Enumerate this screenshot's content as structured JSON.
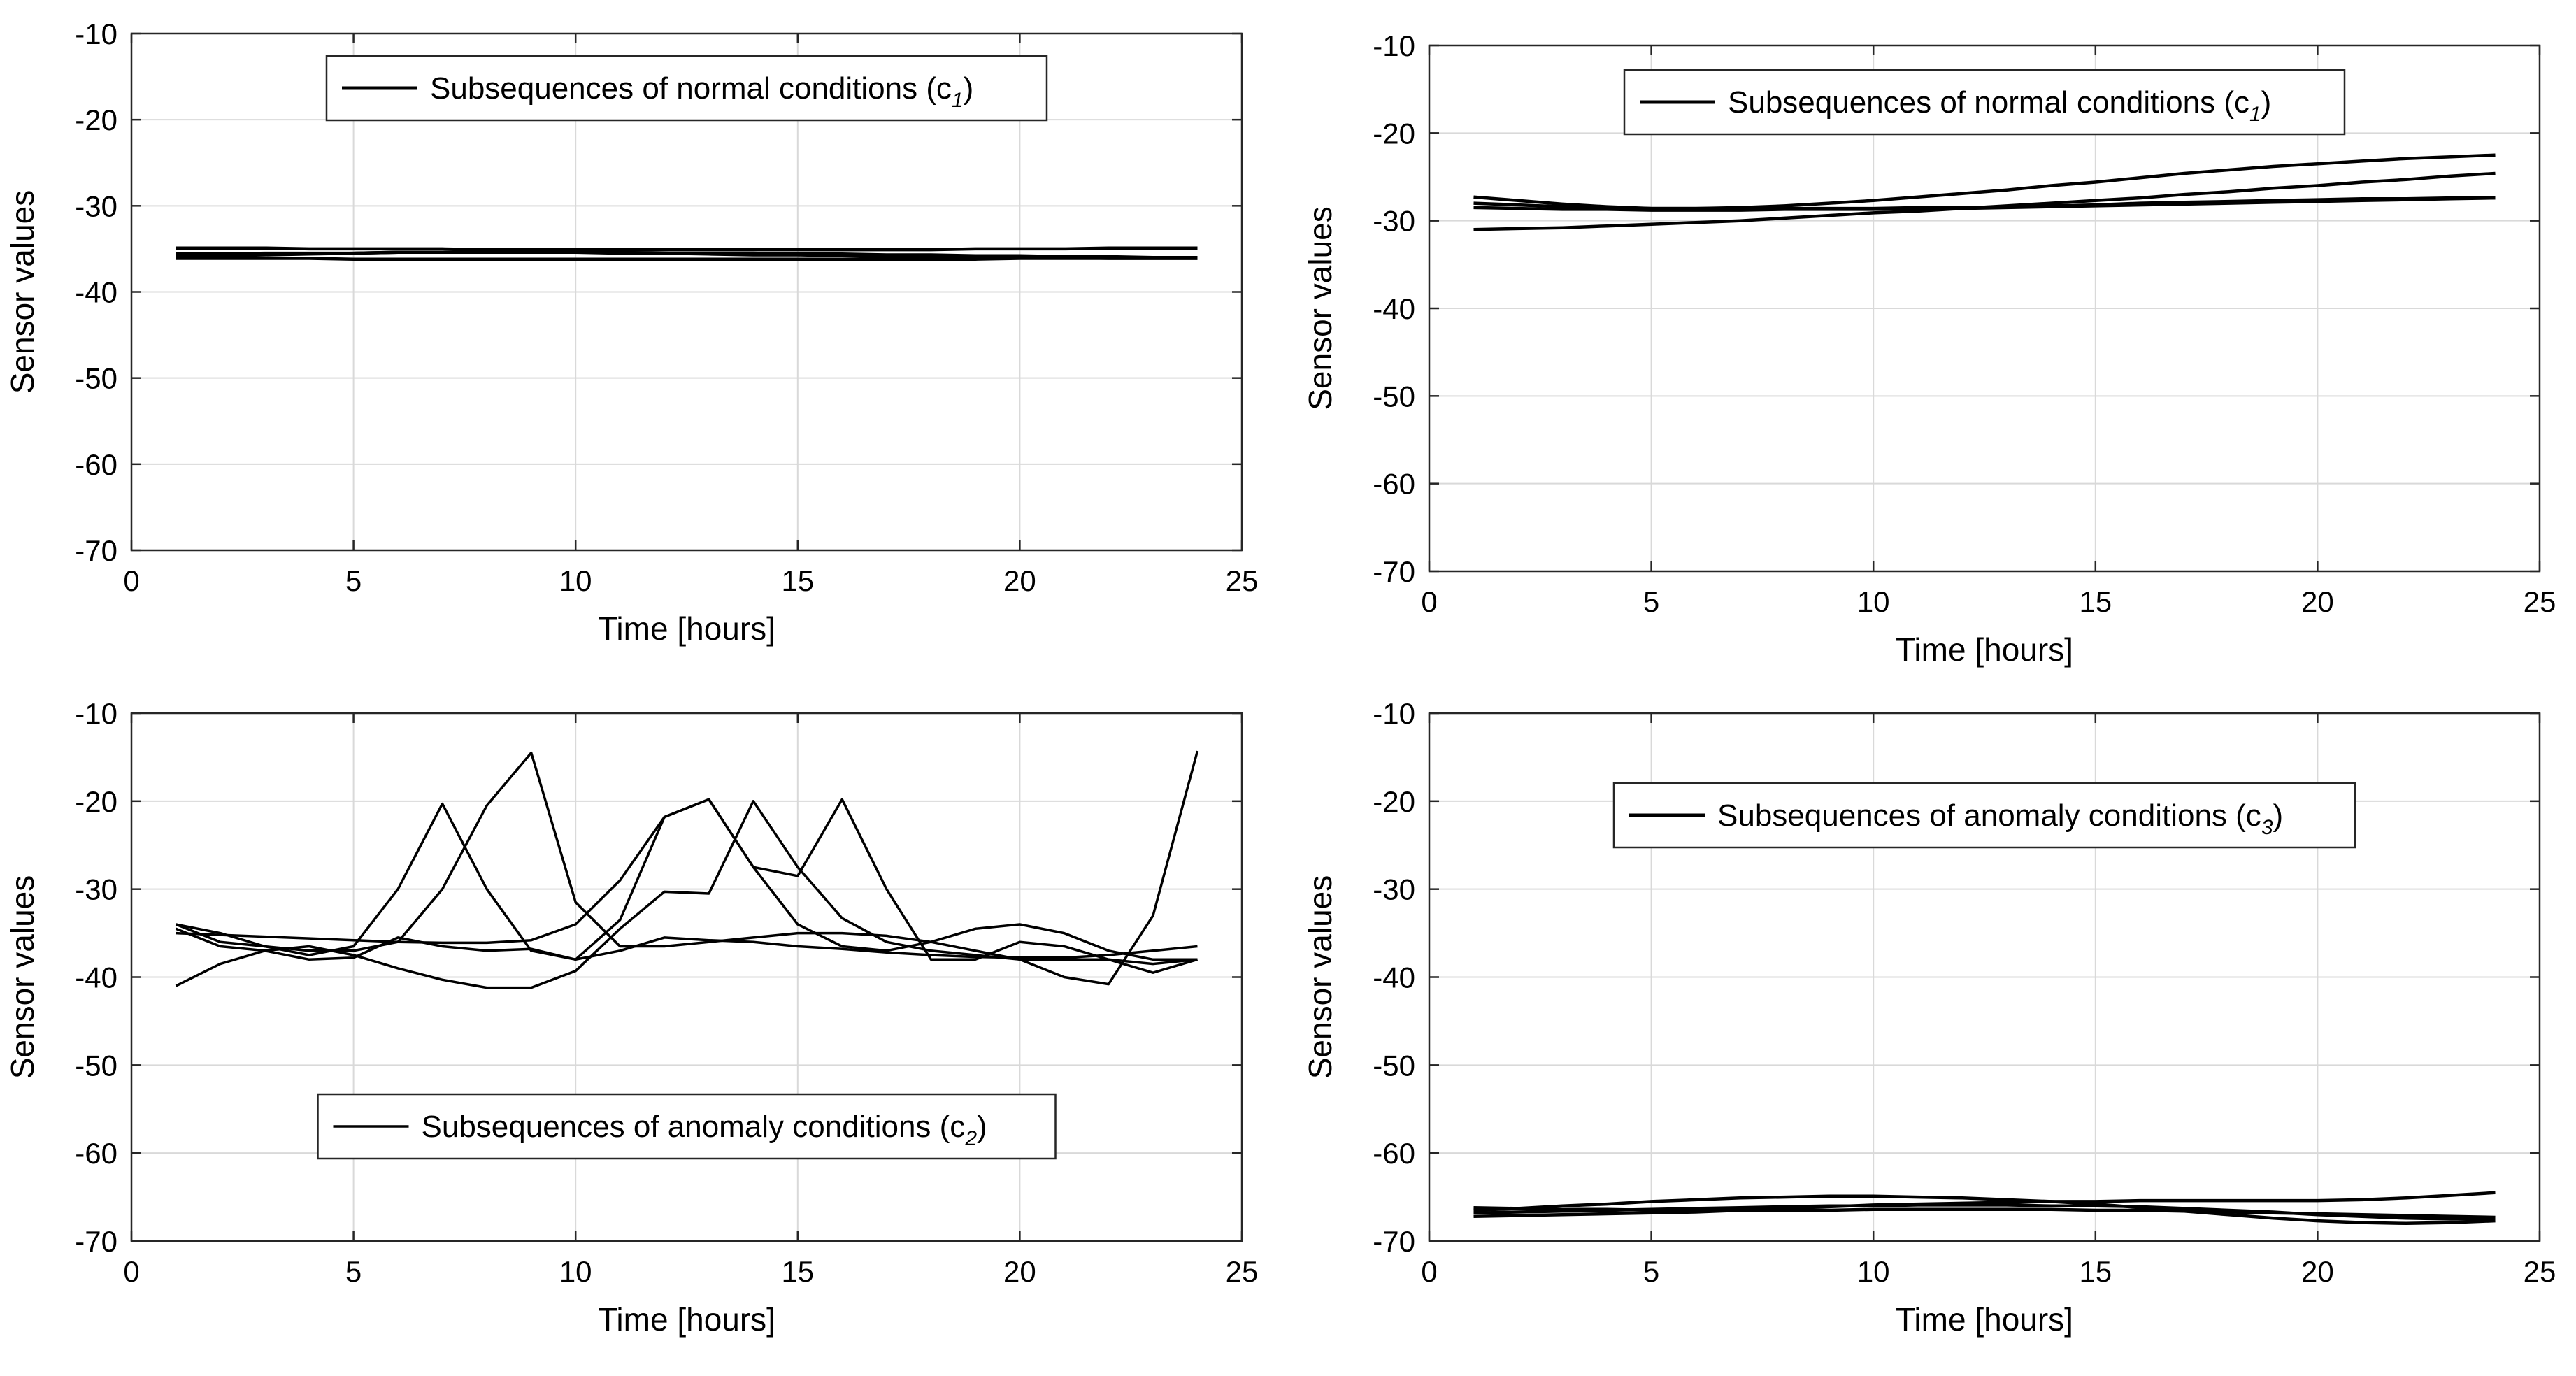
{
  "chart_data": [
    {
      "type": "line",
      "panel": "top-left",
      "xlabel": "Time [hours]",
      "ylabel": "Sensor values",
      "xlim": [
        0,
        25
      ],
      "ylim": [
        -70,
        -10
      ],
      "xticks": [
        0,
        5,
        10,
        15,
        20,
        25
      ],
      "yticks": [
        -70,
        -60,
        -50,
        -40,
        -30,
        -20,
        -10
      ],
      "grid": true,
      "legend": {
        "label": "Subsequences of normal conditions (c",
        "sub": "1",
        "close": ")",
        "placement": "top-center"
      },
      "x": [
        1,
        2,
        3,
        4,
        5,
        6,
        7,
        8,
        9,
        10,
        11,
        12,
        13,
        14,
        15,
        16,
        17,
        18,
        19,
        20,
        21,
        22,
        23,
        24
      ],
      "series": [
        {
          "name": "s1",
          "values": [
            -34.9,
            -34.9,
            -34.9,
            -35.0,
            -35.0,
            -35.0,
            -35.0,
            -35.1,
            -35.1,
            -35.1,
            -35.1,
            -35.1,
            -35.1,
            -35.1,
            -35.1,
            -35.1,
            -35.1,
            -35.1,
            -35.0,
            -35.0,
            -35.0,
            -34.9,
            -34.9,
            -34.9
          ]
        },
        {
          "name": "s2",
          "values": [
            -35.6,
            -35.6,
            -35.5,
            -35.5,
            -35.5,
            -35.4,
            -35.4,
            -35.4,
            -35.4,
            -35.4,
            -35.4,
            -35.5,
            -35.5,
            -35.5,
            -35.6,
            -35.6,
            -35.7,
            -35.7,
            -35.8,
            -35.8,
            -35.9,
            -35.9,
            -36.0,
            -36.0
          ]
        },
        {
          "name": "s3",
          "values": [
            -36.1,
            -36.1,
            -36.1,
            -36.1,
            -36.2,
            -36.2,
            -36.2,
            -36.2,
            -36.2,
            -36.2,
            -36.2,
            -36.2,
            -36.2,
            -36.2,
            -36.2,
            -36.2,
            -36.2,
            -36.2,
            -36.2,
            -36.1,
            -36.1,
            -36.1,
            -36.1,
            -36.1
          ]
        },
        {
          "name": "s4",
          "values": [
            -35.9,
            -35.8,
            -35.7,
            -35.6,
            -35.5,
            -35.4,
            -35.4,
            -35.4,
            -35.4,
            -35.4,
            -35.5,
            -35.5,
            -35.6,
            -35.7,
            -35.7,
            -35.8,
            -35.9,
            -35.9,
            -36.0,
            -36.0,
            -36.0,
            -36.1,
            -36.1,
            -36.1
          ]
        }
      ]
    },
    {
      "type": "line",
      "panel": "top-right",
      "xlabel": "Time [hours]",
      "ylabel": "Sensor values",
      "xlim": [
        0,
        25
      ],
      "ylim": [
        -70,
        -10
      ],
      "xticks": [
        0,
        5,
        10,
        15,
        20,
        25
      ],
      "yticks": [
        -70,
        -60,
        -50,
        -40,
        -30,
        -20,
        -10
      ],
      "grid": true,
      "legend": {
        "label": "Subsequences of normal conditions (c",
        "sub": "1",
        "close": ")",
        "placement": "top-center"
      },
      "x": [
        1,
        2,
        3,
        4,
        5,
        6,
        7,
        8,
        9,
        10,
        11,
        12,
        13,
        14,
        15,
        16,
        17,
        18,
        19,
        20,
        21,
        22,
        23,
        24
      ],
      "series": [
        {
          "name": "s1",
          "values": [
            -27.3,
            -27.7,
            -28.1,
            -28.4,
            -28.6,
            -28.6,
            -28.5,
            -28.3,
            -28.0,
            -27.7,
            -27.3,
            -26.9,
            -26.5,
            -26.0,
            -25.6,
            -25.1,
            -24.6,
            -24.2,
            -23.8,
            -23.5,
            -23.2,
            -22.9,
            -22.7,
            -22.5
          ]
        },
        {
          "name": "s2",
          "values": [
            -28.0,
            -28.2,
            -28.4,
            -28.5,
            -28.6,
            -28.6,
            -28.6,
            -28.6,
            -28.6,
            -28.6,
            -28.5,
            -28.5,
            -28.4,
            -28.3,
            -28.2,
            -28.0,
            -27.9,
            -27.8,
            -27.7,
            -27.6,
            -27.5,
            -27.5,
            -27.4,
            -27.4
          ]
        },
        {
          "name": "s3",
          "values": [
            -31.0,
            -30.9,
            -30.8,
            -30.6,
            -30.4,
            -30.2,
            -30.0,
            -29.7,
            -29.4,
            -29.1,
            -28.9,
            -28.6,
            -28.3,
            -28.0,
            -27.7,
            -27.4,
            -27.0,
            -26.7,
            -26.3,
            -26.0,
            -25.6,
            -25.3,
            -24.9,
            -24.6
          ]
        },
        {
          "name": "s4",
          "values": [
            -28.5,
            -28.6,
            -28.7,
            -28.7,
            -28.8,
            -28.8,
            -28.8,
            -28.7,
            -28.7,
            -28.7,
            -28.6,
            -28.6,
            -28.5,
            -28.4,
            -28.3,
            -28.2,
            -28.1,
            -28.0,
            -27.9,
            -27.8,
            -27.7,
            -27.6,
            -27.5,
            -27.4
          ]
        }
      ]
    },
    {
      "type": "line",
      "panel": "bottom-left",
      "xlabel": "Time [hours]",
      "ylabel": "Sensor values",
      "xlim": [
        0,
        25
      ],
      "ylim": [
        -70,
        -10
      ],
      "xticks": [
        0,
        5,
        10,
        15,
        20,
        25
      ],
      "yticks": [
        -70,
        -60,
        -50,
        -40,
        -30,
        -20,
        -10
      ],
      "grid": true,
      "legend": {
        "label": "Subsequences of anomaly conditions (c",
        "sub": "2",
        "close": ")",
        "placement": "bottom-center"
      },
      "x": [
        1,
        2,
        3,
        4,
        5,
        6,
        7,
        8,
        9,
        10,
        11,
        12,
        13,
        14,
        15,
        16,
        17,
        18,
        19,
        20,
        21,
        22,
        23,
        24
      ],
      "series": [
        {
          "name": "s1",
          "values": [
            -34.0,
            -35.0,
            -36.5,
            -37.5,
            -36.5,
            -30.0,
            -20.3,
            -30.0,
            -37.0,
            -38.0,
            -37.0,
            -35.5,
            -35.8,
            -36.0,
            -36.5,
            -36.8,
            -37.2,
            -37.5,
            -37.7,
            -37.8,
            -37.8,
            -37.5,
            -37.0,
            -36.5
          ]
        },
        {
          "name": "s2",
          "values": [
            -34.0,
            -36.0,
            -36.5,
            -37.0,
            -37.0,
            -36.0,
            -30.0,
            -20.5,
            -14.5,
            -31.5,
            -36.5,
            -36.5,
            -36.0,
            -35.5,
            -35.0,
            -35.0,
            -35.3,
            -36.0,
            -37.0,
            -38.0,
            -40.0,
            -40.8,
            -33.0,
            -14.3
          ]
        },
        {
          "name": "s3",
          "values": [
            -41.0,
            -38.5,
            -37.0,
            -36.5,
            -37.5,
            -39.0,
            -40.3,
            -41.2,
            -41.2,
            -39.3,
            -34.5,
            -30.3,
            -30.5,
            -20.0,
            -27.5,
            -33.3,
            -36.0,
            -37.0,
            -37.5,
            -38.0,
            -38.0,
            -38.0,
            -38.5,
            -38.0
          ]
        },
        {
          "name": "s4",
          "values": [
            -34.5,
            -36.5,
            -37.0,
            -38.0,
            -37.8,
            -35.5,
            -36.5,
            -37.0,
            -36.8,
            -38.0,
            -33.5,
            -21.8,
            -19.8,
            -27.5,
            -28.5,
            -19.8,
            -30.0,
            -38.0,
            -38.0,
            -36.0,
            -36.5,
            -38.0,
            -39.5,
            -38.0
          ]
        },
        {
          "name": "s5",
          "values": [
            -35.0,
            -35.2,
            -35.4,
            -35.6,
            -35.8,
            -36.0,
            -36.1,
            -36.1,
            -35.8,
            -34.0,
            -29.0,
            -21.8,
            -19.8,
            -27.5,
            -34.0,
            -36.5,
            -37.0,
            -36.0,
            -34.5,
            -34.0,
            -35.0,
            -37.0,
            -38.0,
            -38.0
          ]
        }
      ]
    },
    {
      "type": "line",
      "panel": "bottom-right",
      "xlabel": "Time [hours]",
      "ylabel": "Sensor values",
      "xlim": [
        0,
        25
      ],
      "ylim": [
        -70,
        -10
      ],
      "xticks": [
        0,
        5,
        10,
        15,
        20,
        25
      ],
      "yticks": [
        -70,
        -60,
        -50,
        -40,
        -30,
        -20,
        -10
      ],
      "grid": true,
      "legend": {
        "label": "Subsequences of anomaly conditions (c",
        "sub": "3",
        "close": ")",
        "placement": "top-center"
      },
      "x": [
        1,
        2,
        3,
        4,
        5,
        6,
        7,
        8,
        9,
        10,
        11,
        12,
        13,
        14,
        15,
        16,
        17,
        18,
        19,
        20,
        21,
        22,
        23,
        24
      ],
      "series": [
        {
          "name": "s1",
          "values": [
            -66.5,
            -66.3,
            -66.0,
            -65.8,
            -65.5,
            -65.3,
            -65.1,
            -65.0,
            -64.9,
            -64.9,
            -65.0,
            -65.1,
            -65.3,
            -65.5,
            -65.8,
            -66.2,
            -66.6,
            -67.0,
            -67.4,
            -67.7,
            -67.9,
            -68.0,
            -67.9,
            -67.7
          ]
        },
        {
          "name": "s2",
          "values": [
            -66.2,
            -66.3,
            -66.4,
            -66.4,
            -66.5,
            -66.5,
            -66.5,
            -66.5,
            -66.5,
            -66.4,
            -66.4,
            -66.4,
            -66.4,
            -66.4,
            -66.5,
            -66.5,
            -66.6,
            -66.7,
            -66.8,
            -66.9,
            -67.0,
            -67.1,
            -67.2,
            -67.3
          ]
        },
        {
          "name": "s3",
          "values": [
            -67.2,
            -67.1,
            -67.0,
            -66.9,
            -66.8,
            -66.7,
            -66.5,
            -66.3,
            -66.1,
            -65.9,
            -65.8,
            -65.7,
            -65.6,
            -65.5,
            -65.5,
            -65.4,
            -65.4,
            -65.4,
            -65.4,
            -65.4,
            -65.3,
            -65.1,
            -64.8,
            -64.5
          ]
        },
        {
          "name": "s4",
          "values": [
            -66.8,
            -66.7,
            -66.6,
            -66.5,
            -66.4,
            -66.3,
            -66.2,
            -66.1,
            -66.0,
            -66.0,
            -65.9,
            -65.9,
            -65.9,
            -66.0,
            -66.0,
            -66.1,
            -66.3,
            -66.5,
            -66.7,
            -67.0,
            -67.2,
            -67.4,
            -67.5,
            -67.5
          ]
        }
      ]
    }
  ]
}
